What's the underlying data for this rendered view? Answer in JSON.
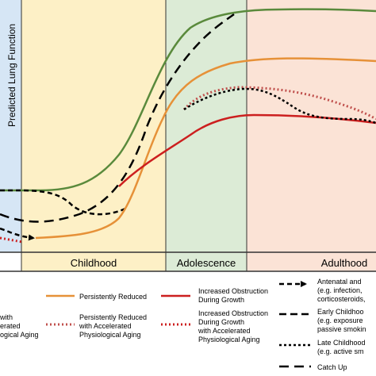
{
  "axis": {
    "y_label": "Predicted Lung Function"
  },
  "phases": {
    "childhood": "Childhood",
    "adolescence": "Adolescence",
    "adulthood": "Adulthood"
  },
  "colors": {
    "green": "#5a8a3c",
    "orange": "#e69138",
    "red": "#cc1f1f",
    "black": "#000000",
    "antenatal_bg": "#d6e6f5",
    "childhood_bg": "#fdf0c6",
    "adolescence_bg": "#dcebd6",
    "adulthood_bg": "#fbe3d6"
  },
  "legend": {
    "col1": {
      "line1": "with",
      "line2": "erated",
      "line3": "ogical Aging"
    },
    "col2": {
      "persistently_reduced": "Persistently Reduced",
      "accel1": "Persistently Reduced",
      "accel2": "with Accelerated",
      "accel3": "Physiological Aging"
    },
    "col3": {
      "inc1": "Increased Obstruction",
      "inc2": "During Growth",
      "acc1": "Increased Obstruction",
      "acc2": "During Growth",
      "acc3": "with Accelerated",
      "acc4": "Physiological Aging"
    },
    "col4": {
      "antenatal1": "Antenatal and",
      "antenatal2": "(e.g. infection,",
      "antenatal3": "corticosteroids,",
      "early1": "Early Childhoo",
      "early2": "(e.g. exposure",
      "early3": "passive smokin",
      "late1": "Late Childhood",
      "late2": "(e.g. active sm",
      "catchup": "Catch Up"
    }
  }
}
